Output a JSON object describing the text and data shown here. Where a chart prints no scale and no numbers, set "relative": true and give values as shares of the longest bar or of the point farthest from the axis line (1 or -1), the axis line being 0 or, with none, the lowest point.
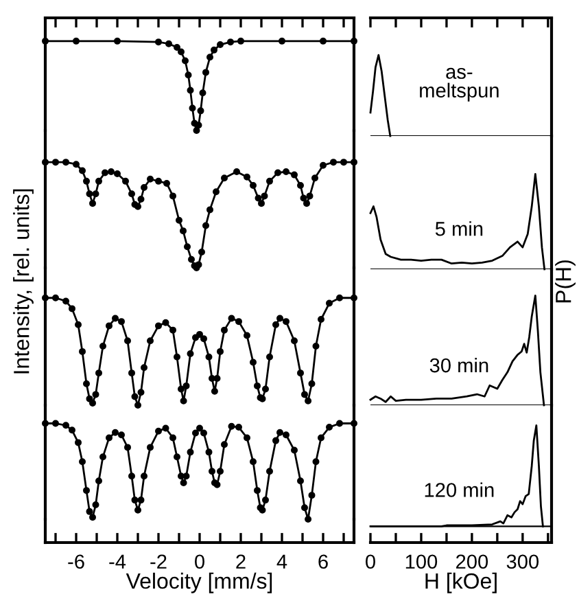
{
  "chart_data": [
    {
      "type": "line",
      "relative": true,
      "marker": "circle",
      "ylabel": "Intensity, [rel. units]",
      "xlim": [
        -7.5,
        7.5
      ],
      "series": [
        {
          "color": "#000000",
          "x": [
            -7.5,
            -6,
            -4,
            -2,
            -1.5,
            -1.1,
            -0.9,
            -0.7,
            -0.55,
            -0.45,
            -0.35,
            -0.25,
            -0.15,
            -0.05,
            0.05,
            0.15,
            0.3,
            0.5,
            0.7,
            1.0,
            1.5,
            2,
            4,
            6,
            7.5
          ],
          "values": [
            1,
            1,
            1,
            0.99,
            0.97,
            0.93,
            0.88,
            0.78,
            0.62,
            0.45,
            0.25,
            0.08,
            0,
            0.06,
            0.22,
            0.42,
            0.65,
            0.82,
            0.9,
            0.96,
            0.99,
            1,
            1,
            1,
            1
          ]
        }
      ]
    },
    {
      "type": "line",
      "relative": true,
      "marker": "none",
      "xlim": [
        0,
        357
      ],
      "annotations": [
        "as-\nmeltspun"
      ],
      "series": [
        {
          "color": "#000000",
          "x": [
            0,
            5,
            10,
            16,
            22,
            28,
            34,
            39
          ],
          "values": [
            0.29,
            0.55,
            0.85,
            1,
            0.8,
            0.5,
            0.2,
            0
          ]
        }
      ]
    },
    {
      "type": "line",
      "relative": true,
      "marker": "circle",
      "xlim": [
        -7.5,
        7.5
      ],
      "series": [
        {
          "color": "#000000",
          "x": [
            -7.5,
            -7,
            -6.5,
            -6,
            -5.7,
            -5.5,
            -5.35,
            -5.2,
            -5.05,
            -4.9,
            -4.6,
            -4.3,
            -4.0,
            -3.6,
            -3.3,
            -3.15,
            -3.0,
            -2.85,
            -2.7,
            -2.4,
            -2.0,
            -1.6,
            -1.3,
            -1.0,
            -0.8,
            -0.6,
            -0.4,
            -0.25,
            -0.15,
            -0.05,
            0.1,
            0.3,
            0.5,
            0.8,
            1.2,
            1.8,
            2.3,
            2.6,
            2.85,
            3.0,
            3.15,
            3.4,
            3.8,
            4.2,
            4.6,
            4.9,
            5.05,
            5.2,
            5.35,
            5.6,
            6,
            6.5,
            7,
            7.5
          ],
          "values": [
            1,
            1,
            1,
            0.98,
            0.92,
            0.82,
            0.7,
            0.61,
            0.7,
            0.82,
            0.9,
            0.91,
            0.89,
            0.82,
            0.7,
            0.6,
            0.58,
            0.65,
            0.76,
            0.84,
            0.82,
            0.8,
            0.68,
            0.45,
            0.35,
            0.2,
            0.08,
            0.02,
            0,
            0.03,
            0.15,
            0.4,
            0.55,
            0.72,
            0.85,
            0.91,
            0.86,
            0.78,
            0.66,
            0.61,
            0.68,
            0.82,
            0.9,
            0.91,
            0.88,
            0.78,
            0.66,
            0.61,
            0.68,
            0.85,
            0.97,
            1,
            1,
            1
          ]
        }
      ]
    },
    {
      "type": "line",
      "relative": true,
      "marker": "none",
      "xlim": [
        0,
        357
      ],
      "annotations": [
        "5 min"
      ],
      "series": [
        {
          "color": "#000000",
          "x": [
            0,
            6,
            12,
            20,
            30,
            40,
            60,
            80,
            100,
            120,
            140,
            160,
            180,
            200,
            220,
            240,
            260,
            275,
            290,
            300,
            310,
            318,
            325,
            332,
            338,
            343
          ],
          "values": [
            0.59,
            0.66,
            0.55,
            0.31,
            0.16,
            0.13,
            0.1,
            0.1,
            0.09,
            0.1,
            0.1,
            0.06,
            0.07,
            0.06,
            0.07,
            0.09,
            0.14,
            0.23,
            0.29,
            0.23,
            0.37,
            0.66,
            1,
            0.66,
            0.23,
            0
          ]
        }
      ]
    },
    {
      "type": "line",
      "relative": true,
      "marker": "circle",
      "xlim": [
        -7.5,
        7.5
      ],
      "series": [
        {
          "color": "#000000",
          "x": [
            -7.5,
            -7,
            -6.5,
            -6.2,
            -5.9,
            -5.7,
            -5.5,
            -5.35,
            -5.2,
            -5.05,
            -4.9,
            -4.7,
            -4.4,
            -4.1,
            -3.8,
            -3.5,
            -3.3,
            -3.15,
            -3.0,
            -2.85,
            -2.7,
            -2.4,
            -2.0,
            -1.65,
            -1.3,
            -1.1,
            -0.9,
            -0.78,
            -0.65,
            -0.45,
            -0.2,
            0,
            0.2,
            0.45,
            0.6,
            0.73,
            0.85,
            1.0,
            1.2,
            1.55,
            1.9,
            2.3,
            2.6,
            2.8,
            2.95,
            3.05,
            3.2,
            3.4,
            3.7,
            3.9,
            4.2,
            4.6,
            4.9,
            5.1,
            5.27,
            5.45,
            5.65,
            5.9,
            6.3,
            6.8,
            7.5
          ],
          "values": [
            1,
            1,
            0.97,
            0.9,
            0.75,
            0.5,
            0.2,
            0.06,
            0.02,
            0.1,
            0.3,
            0.55,
            0.74,
            0.81,
            0.78,
            0.6,
            0.3,
            0.08,
            0,
            0.12,
            0.35,
            0.6,
            0.74,
            0.77,
            0.7,
            0.45,
            0.15,
            0.04,
            0.18,
            0.48,
            0.63,
            0.66,
            0.62,
            0.45,
            0.25,
            0.13,
            0.25,
            0.5,
            0.7,
            0.81,
            0.78,
            0.65,
            0.4,
            0.18,
            0.07,
            0.06,
            0.15,
            0.45,
            0.75,
            0.81,
            0.78,
            0.6,
            0.3,
            0.1,
            0.04,
            0.2,
            0.55,
            0.8,
            0.95,
            1,
            1
          ]
        }
      ]
    },
    {
      "type": "line",
      "relative": true,
      "marker": "none",
      "xlim": [
        0,
        357
      ],
      "annotations": [
        "30 min"
      ],
      "series": [
        {
          "color": "#000000",
          "x": [
            0,
            10,
            20,
            30,
            40,
            50,
            70,
            100,
            130,
            160,
            190,
            210,
            225,
            235,
            250,
            260,
            270,
            280,
            290,
            298,
            303,
            308,
            313,
            318,
            325,
            330,
            335,
            342
          ],
          "values": [
            0.05,
            0.08,
            0.06,
            0.03,
            0.08,
            0.04,
            0.05,
            0.05,
            0.06,
            0.06,
            0.08,
            0.1,
            0.08,
            0.18,
            0.15,
            0.23,
            0.3,
            0.4,
            0.46,
            0.49,
            0.56,
            0.48,
            0.62,
            0.81,
            1,
            0.68,
            0.3,
            0
          ]
        }
      ]
    },
    {
      "type": "line",
      "relative": true,
      "marker": "circle",
      "xlabel": "Velocity [mm/s]",
      "xlim": [
        -7.5,
        7.5
      ],
      "xticks": [
        {
          "value": -7,
          "label": null
        },
        -6,
        {
          "value": -5,
          "label": null
        },
        -4,
        {
          "value": -3,
          "label": null
        },
        -2,
        {
          "value": -1,
          "label": null
        },
        0,
        {
          "value": 1,
          "label": null
        },
        2,
        {
          "value": 3,
          "label": null
        },
        4,
        {
          "value": 5,
          "label": null
        },
        6,
        {
          "value": 7,
          "label": null
        }
      ],
      "series": [
        {
          "color": "#000000",
          "x": [
            -7.5,
            -7,
            -6.5,
            -6.2,
            -5.9,
            -5.7,
            -5.5,
            -5.35,
            -5.2,
            -5.05,
            -4.9,
            -4.7,
            -4.4,
            -4.1,
            -3.8,
            -3.5,
            -3.3,
            -3.15,
            -3.0,
            -2.85,
            -2.7,
            -2.4,
            -2.0,
            -1.65,
            -1.3,
            -1.1,
            -0.9,
            -0.78,
            -0.65,
            -0.45,
            -0.2,
            0,
            0.2,
            0.45,
            0.6,
            0.73,
            0.85,
            1.0,
            1.2,
            1.55,
            1.9,
            2.3,
            2.6,
            2.8,
            2.95,
            3.05,
            3.2,
            3.4,
            3.7,
            3.9,
            4.2,
            4.6,
            4.9,
            5.1,
            5.27,
            5.45,
            5.65,
            5.9,
            6.3,
            6.8,
            7.5
          ],
          "values": [
            1,
            1,
            0.98,
            0.93,
            0.8,
            0.6,
            0.3,
            0.08,
            0.02,
            0.15,
            0.4,
            0.65,
            0.85,
            0.905,
            0.88,
            0.75,
            0.45,
            0.2,
            0.095,
            0.2,
            0.45,
            0.75,
            0.92,
            0.95,
            0.85,
            0.65,
            0.45,
            0.38,
            0.45,
            0.7,
            0.9,
            0.95,
            0.9,
            0.7,
            0.5,
            0.38,
            0.36,
            0.5,
            0.78,
            0.97,
            0.96,
            0.85,
            0.6,
            0.3,
            0.12,
            0.095,
            0.2,
            0.5,
            0.82,
            0.905,
            0.88,
            0.72,
            0.4,
            0.12,
            0,
            0.25,
            0.6,
            0.85,
            0.96,
            1,
            1
          ]
        }
      ]
    },
    {
      "type": "line",
      "relative": true,
      "marker": "none",
      "ylabel": "P(H)",
      "xlabel": "H [kOe]",
      "xlim": [
        0,
        357
      ],
      "xticks": [
        0,
        {
          "value": 50,
          "label": null
        },
        100,
        {
          "value": 150,
          "label": null
        },
        200,
        {
          "value": 250,
          "label": null
        },
        300,
        {
          "value": 350,
          "label": null
        }
      ],
      "annotations": [
        "120 min"
      ],
      "series": [
        {
          "color": "#000000",
          "x": [
            0,
            140,
            150,
            160,
            200,
            240,
            256,
            262,
            270,
            278,
            284,
            290,
            295,
            300,
            306,
            312,
            318,
            322,
            327,
            332,
            336,
            340
          ],
          "values": [
            0,
            0,
            0.01,
            0.01,
            0.01,
            0.02,
            0.05,
            0.03,
            0.11,
            0.09,
            0.14,
            0.17,
            0.25,
            0.22,
            0.3,
            0.32,
            0.6,
            0.85,
            1,
            0.6,
            0.2,
            0
          ]
        }
      ]
    }
  ]
}
